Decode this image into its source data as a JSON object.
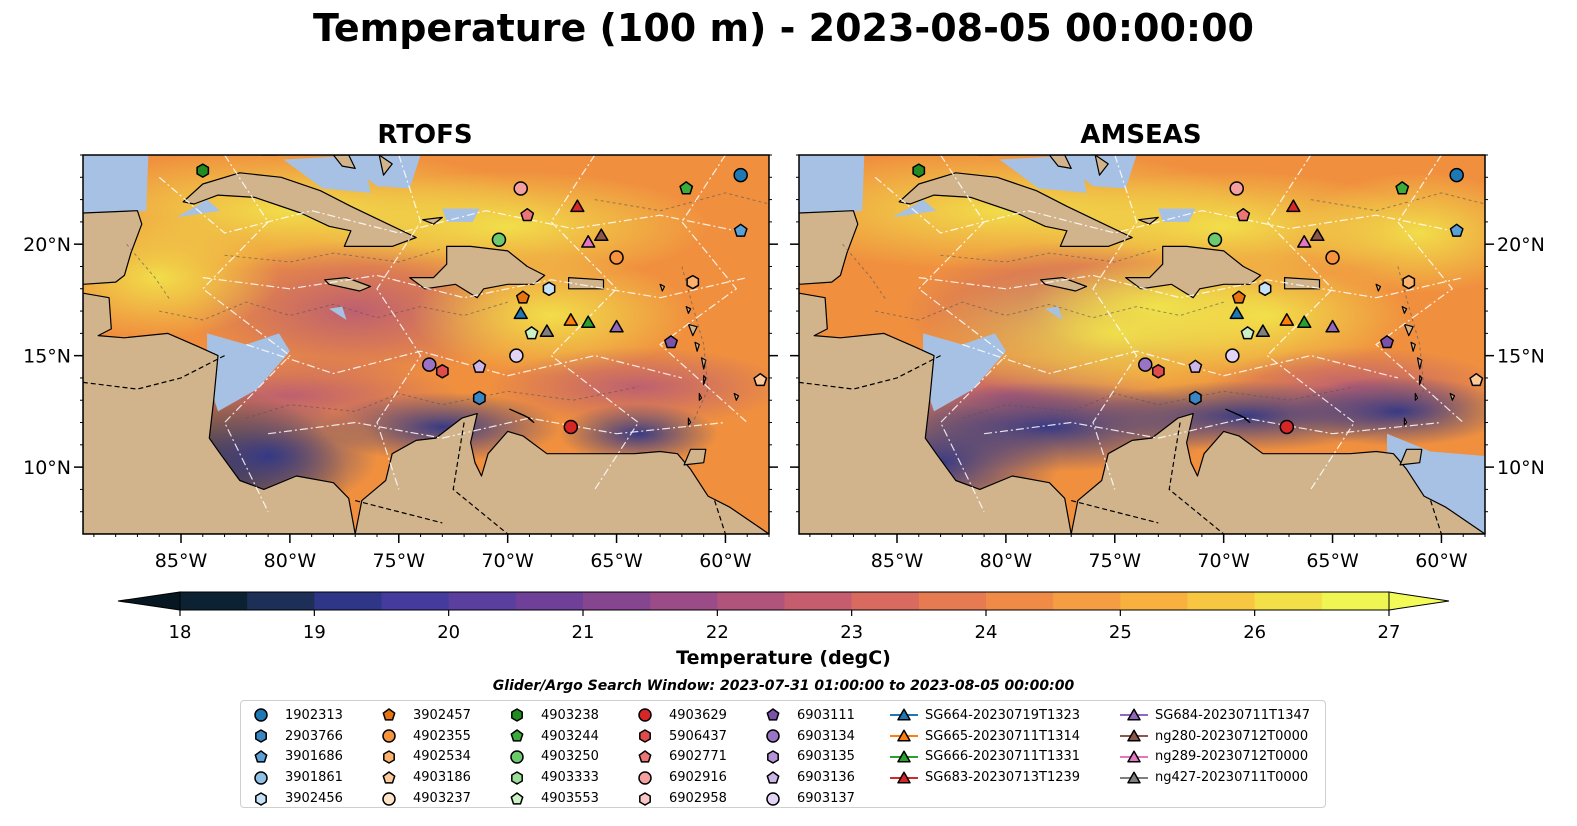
{
  "title": "Temperature (100 m) - 2023-08-05 00:00:00",
  "panels": [
    {
      "title": "RTOFS"
    },
    {
      "title": "AMSEAS"
    }
  ],
  "map": {
    "lon_range": [
      -89.5,
      -58
    ],
    "lat_range": [
      7,
      24
    ],
    "lon_ticks": [
      -85,
      -80,
      -75,
      -70,
      -65,
      -60
    ],
    "lon_tick_labels": [
      "85°W",
      "80°W",
      "75°W",
      "70°W",
      "65°W",
      "60°W"
    ],
    "lat_ticks": [
      10,
      15,
      20
    ],
    "lat_tick_labels": [
      "10°N",
      "15°N",
      "20°N"
    ],
    "land_color": "#d2b48c",
    "ocean_color": "#a7c1e4"
  },
  "colorbar": {
    "label": "Temperature (degC)",
    "ticks": [
      "18",
      "19",
      "20",
      "21",
      "22",
      "23",
      "24",
      "25",
      "26",
      "27"
    ],
    "range": [
      18,
      27
    ],
    "colormap": [
      "#0c2233",
      "#1d2e57",
      "#2f3688",
      "#453b9e",
      "#5b3f9f",
      "#703f98",
      "#86458f",
      "#9b4b87",
      "#b1547c",
      "#c65d6f",
      "#d86a5f",
      "#e67b52",
      "#f08b47",
      "#f59d42",
      "#f8b13f",
      "#f7c741",
      "#f3df48",
      "#eff553"
    ],
    "extend": "both"
  },
  "search_window": "Glider/Argo Search Window: 2023-07-31 01:00:00 to 2023-08-05 00:00:00",
  "legend": {
    "columns": [
      [
        {
          "label": "1902313",
          "marker": "circle",
          "color": "#1f77b4"
        },
        {
          "label": "2903766",
          "marker": "hexagon",
          "color": "#3a86c3"
        },
        {
          "label": "3901686",
          "marker": "pentagon",
          "color": "#5aa0d8"
        },
        {
          "label": "3901861",
          "marker": "circle",
          "color": "#8fc0e6"
        },
        {
          "label": "3902456",
          "marker": "hexagon",
          "color": "#c6e2f7"
        }
      ],
      [
        {
          "label": "3902457",
          "marker": "pentagon",
          "color": "#e8740f"
        },
        {
          "label": "4902355",
          "marker": "circle",
          "color": "#f7923e"
        },
        {
          "label": "4902534",
          "marker": "hexagon",
          "color": "#fbb26f"
        },
        {
          "label": "4903186",
          "marker": "pentagon",
          "color": "#fdcb9b"
        },
        {
          "label": "4903237",
          "marker": "circle",
          "color": "#fee3c6"
        }
      ],
      [
        {
          "label": "4903238",
          "marker": "hexagon",
          "color": "#228b22"
        },
        {
          "label": "4903244",
          "marker": "pentagon",
          "color": "#3bab3b"
        },
        {
          "label": "4903250",
          "marker": "circle",
          "color": "#6dc96d"
        },
        {
          "label": "4903333",
          "marker": "hexagon",
          "color": "#9ddf99"
        },
        {
          "label": "4903553",
          "marker": "pentagon",
          "color": "#cbf0c6"
        }
      ],
      [
        {
          "label": "4903629",
          "marker": "circle",
          "color": "#d62728"
        },
        {
          "label": "5906437",
          "marker": "hexagon",
          "color": "#e04c4c"
        },
        {
          "label": "6902771",
          "marker": "pentagon",
          "color": "#ec7676"
        },
        {
          "label": "6902916",
          "marker": "circle",
          "color": "#f4a0a0"
        },
        {
          "label": "6902958",
          "marker": "hexagon",
          "color": "#fac8c8"
        }
      ],
      [
        {
          "label": "6903111",
          "marker": "pentagon",
          "color": "#7b52ab"
        },
        {
          "label": "6903134",
          "marker": "circle",
          "color": "#9a73c4"
        },
        {
          "label": "6903135",
          "marker": "hexagon",
          "color": "#b494d7"
        },
        {
          "label": "6903136",
          "marker": "pentagon",
          "color": "#ccb5e7"
        },
        {
          "label": "6903137",
          "marker": "circle",
          "color": "#e2d4f5"
        }
      ],
      [
        {
          "label": "SG664-20230719T1323",
          "marker": "triangle",
          "color": "#1f77b4"
        },
        {
          "label": "SG665-20230711T1314",
          "marker": "triangle",
          "color": "#ff7f0e"
        },
        {
          "label": "SG666-20230711T1331",
          "marker": "triangle",
          "color": "#2ca02c"
        },
        {
          "label": "SG683-20230713T1239",
          "marker": "triangle",
          "color": "#d62728"
        }
      ],
      [
        {
          "label": "SG684-20230711T1347",
          "marker": "triangle",
          "color": "#9467bd"
        },
        {
          "label": "ng280-20230712T0000",
          "marker": "triangle",
          "color": "#8c564b"
        },
        {
          "label": "ng289-20230712T0000",
          "marker": "triangle",
          "color": "#e377c2"
        },
        {
          "label": "ng427-20230711T0000",
          "marker": "triangle",
          "color": "#7f7f7f"
        }
      ]
    ]
  },
  "platforms": [
    {
      "id": "1902313",
      "lon": -59.3,
      "lat": 23.1
    },
    {
      "id": "2903766",
      "lon": -71.3,
      "lat": 13.1
    },
    {
      "id": "3901686",
      "lon": -59.3,
      "lat": 20.6
    },
    {
      "id": "3902456",
      "lon": -68.1,
      "lat": 18.0
    },
    {
      "id": "3902457",
      "lon": -69.3,
      "lat": 17.6
    },
    {
      "id": "4902355",
      "lon": -65.0,
      "lat": 19.4
    },
    {
      "id": "4902534",
      "lon": -61.5,
      "lat": 18.3
    },
    {
      "id": "4903186",
      "lon": -58.4,
      "lat": 13.9
    },
    {
      "id": "4903238",
      "lon": -84.0,
      "lat": 23.3
    },
    {
      "id": "4903244",
      "lon": -61.8,
      "lat": 22.5
    },
    {
      "id": "4903250",
      "lon": -70.4,
      "lat": 20.2
    },
    {
      "id": "4903553",
      "lon": -68.9,
      "lat": 16.0
    },
    {
      "id": "4903629",
      "lon": -67.1,
      "lat": 11.8
    },
    {
      "id": "5906437",
      "lon": -73.0,
      "lat": 14.3
    },
    {
      "id": "6902771",
      "lon": -69.1,
      "lat": 21.3
    },
    {
      "id": "6902916",
      "lon": -69.4,
      "lat": 22.5
    },
    {
      "id": "6903111",
      "lon": -62.5,
      "lat": 15.6
    },
    {
      "id": "6903134",
      "lon": -73.6,
      "lat": 14.6
    },
    {
      "id": "6903136",
      "lon": -71.3,
      "lat": 14.5
    },
    {
      "id": "6903137",
      "lon": -69.6,
      "lat": 15.0
    },
    {
      "id": "SG664-20230719T1323",
      "lon": -69.4,
      "lat": 16.9
    },
    {
      "id": "SG665-20230711T1314",
      "lon": -67.1,
      "lat": 16.6
    },
    {
      "id": "SG666-20230711T1331",
      "lon": -66.3,
      "lat": 16.5
    },
    {
      "id": "SG683-20230713T1239",
      "lon": -66.8,
      "lat": 21.7
    },
    {
      "id": "SG684-20230711T1347",
      "lon": -65.0,
      "lat": 16.3
    },
    {
      "id": "ng280-20230712T0000",
      "lon": -65.7,
      "lat": 20.4
    },
    {
      "id": "ng289-20230712T0000",
      "lon": -66.3,
      "lat": 20.1
    },
    {
      "id": "ng427-20230711T0000",
      "lon": -68.2,
      "lat": 16.1
    }
  ]
}
